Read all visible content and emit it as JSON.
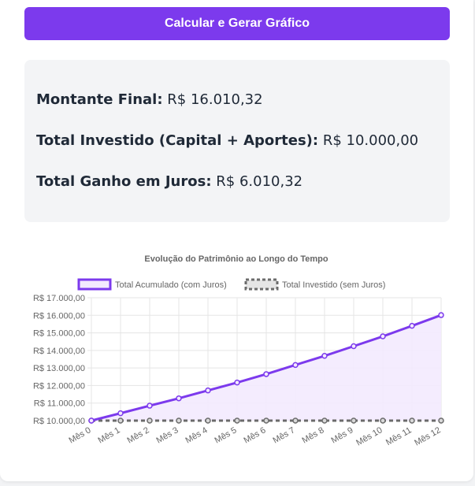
{
  "button": {
    "label": "Calcular e Gerar Gráfico"
  },
  "results": [
    {
      "label": "Montante Final:",
      "value": "R$ 16.010,32"
    },
    {
      "label": "Total Investido (Capital + Aportes):",
      "value": "R$ 10.000,00"
    },
    {
      "label": "Total Ganho em Juros:",
      "value": "R$ 6.010,32"
    }
  ],
  "colors": {
    "accent": "#7c3aed",
    "accent_fill": "#f3eafe",
    "invested_line": "#6b6b6b",
    "grid": "#e5e5e5",
    "text_muted": "#666666"
  },
  "chart_data": {
    "type": "line",
    "title": "Evolução do Patrimônio ao Longo do Tempo",
    "categories": [
      "Mês 0",
      "Mês 1",
      "Mês 2",
      "Mês 3",
      "Mês 4",
      "Mês 5",
      "Mês 6",
      "Mês 7",
      "Mês 8",
      "Mês 9",
      "Mês 10",
      "Mês 11",
      "Mês 12"
    ],
    "series": [
      {
        "name": "Total Acumulado (com Juros)",
        "values": [
          10000,
          10420,
          10850,
          11270,
          11720,
          12170,
          12650,
          13170,
          13690,
          14240,
          14800,
          15400,
          16010.32
        ],
        "color": "#7c3aed",
        "fill": true,
        "style": "solid"
      },
      {
        "name": "Total Investido (sem Juros)",
        "values": [
          10000,
          10000,
          10000,
          10000,
          10000,
          10000,
          10000,
          10000,
          10000,
          10000,
          10000,
          10000,
          10000
        ],
        "color": "#6b6b6b",
        "fill": false,
        "style": "dashed"
      }
    ],
    "y_ticks": [
      "R$ 10.000,00",
      "R$ 11.000,00",
      "R$ 12.000,00",
      "R$ 13.000,00",
      "R$ 14.000,00",
      "R$ 15.000,00",
      "R$ 16.000,00",
      "R$ 17.000,00"
    ],
    "ylim": [
      10000,
      17000
    ],
    "grid": true,
    "legend_position": "top"
  }
}
